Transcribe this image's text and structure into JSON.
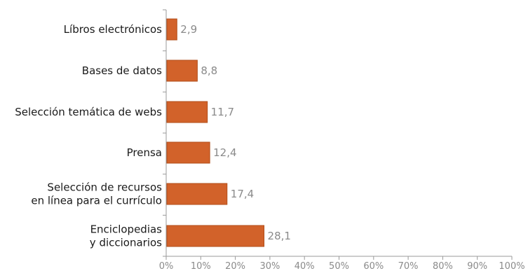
{
  "chart_data": {
    "type": "bar",
    "orientation": "horizontal",
    "title": "",
    "xlabel": "",
    "ylabel": "",
    "xlim": [
      0,
      100
    ],
    "categories": [
      [
        "Líbros electrónicos"
      ],
      [
        "Bases de datos"
      ],
      [
        "Selección temática de webs"
      ],
      [
        "Prensa"
      ],
      [
        "Selección de recursos",
        "en línea para el currículo"
      ],
      [
        "Enciclopedias",
        "y diccionarios"
      ]
    ],
    "values": [
      2.9,
      8.8,
      11.7,
      12.4,
      17.4,
      28.1
    ],
    "value_labels": [
      "2,9",
      "8,8",
      "11,7",
      "12,4",
      "17,4",
      "28,1"
    ],
    "x_ticks": [
      "0%",
      "10%",
      "20%",
      "30%",
      "40%",
      "50%",
      "60%",
      "70%",
      "80%",
      "90%",
      "100%"
    ],
    "grid": false,
    "legend": "none",
    "bar_color": "#d2622a",
    "bar_stroke": "#b24e1a"
  }
}
